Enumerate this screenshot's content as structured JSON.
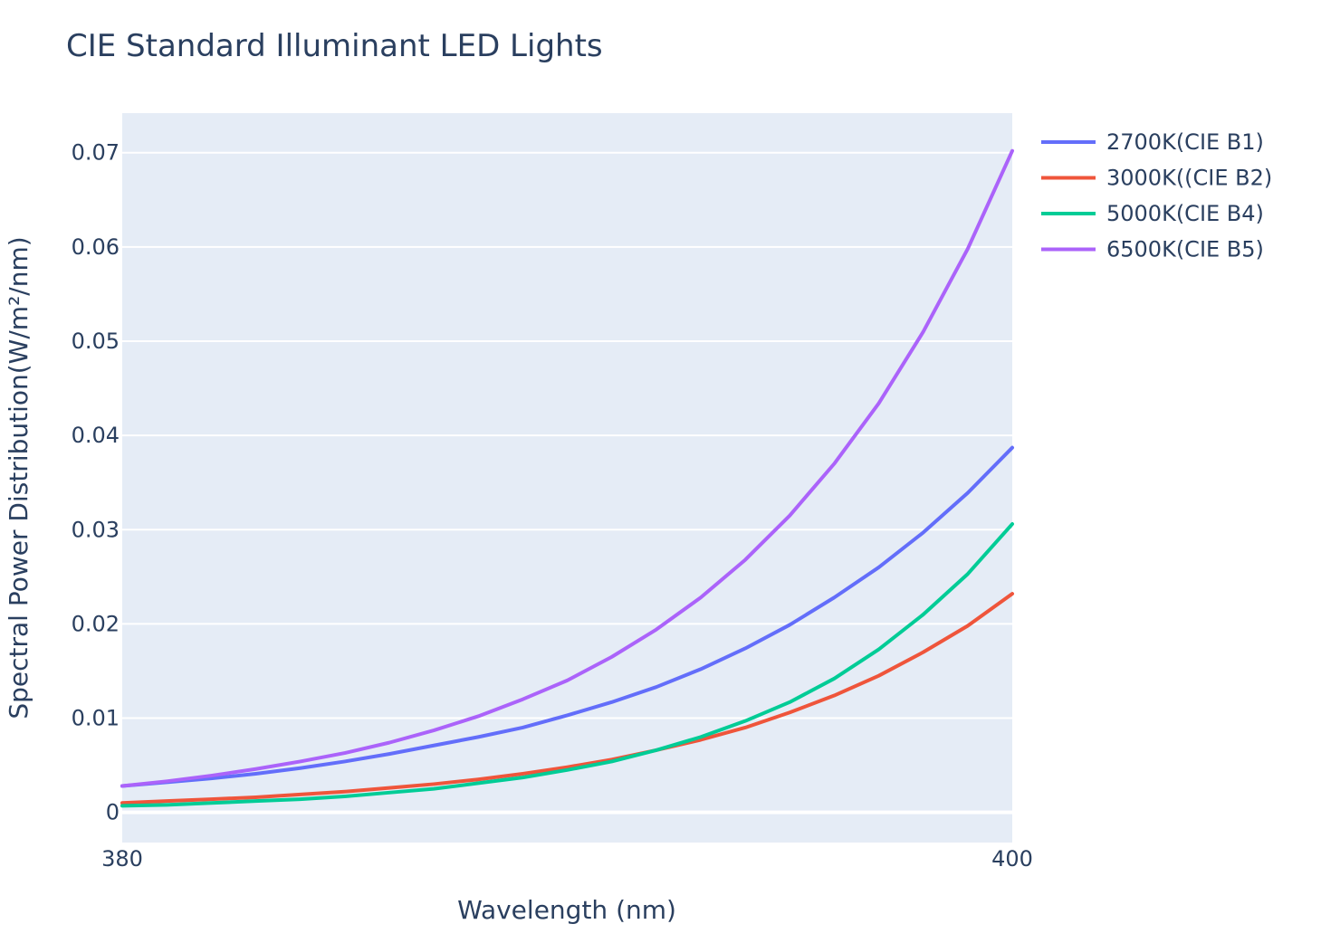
{
  "chart_data": {
    "type": "line",
    "title": "CIE Standard Illuminant LED Lights",
    "xlabel": "Wavelength (nm)",
    "ylabel": "Spectral Power Distribution(W/m²/nm)",
    "xlim": [
      380,
      400
    ],
    "ylim": [
      -0.0032,
      0.0742
    ],
    "x_ticks": [
      380,
      400
    ],
    "x_tick_labels": [
      "380",
      "400"
    ],
    "y_ticks": [
      0,
      0.01,
      0.02,
      0.03,
      0.04,
      0.05,
      0.06,
      0.07
    ],
    "y_tick_labels": [
      "0",
      "0.01",
      "0.02",
      "0.03",
      "0.04",
      "0.05",
      "0.06",
      "0.07"
    ],
    "grid": true,
    "legend_position": "top-right",
    "plot_background": "#e5ecf6",
    "x": [
      380,
      381,
      382,
      383,
      384,
      385,
      386,
      387,
      388,
      389,
      390,
      391,
      392,
      393,
      394,
      395,
      396,
      397,
      398,
      399,
      400
    ],
    "series": [
      {
        "name": "2700K(CIE B1)",
        "color": "#636efa",
        "values": [
          0.0028,
          0.0032,
          0.0036,
          0.0041,
          0.0047,
          0.0054,
          0.0062,
          0.0071,
          0.008,
          0.009,
          0.0103,
          0.0117,
          0.0133,
          0.0152,
          0.0174,
          0.0199,
          0.0228,
          0.026,
          0.0297,
          0.0339,
          0.0387
        ]
      },
      {
        "name": "3000K((CIE B2)",
        "color": "#ef553b",
        "values": [
          0.001,
          0.0012,
          0.0014,
          0.0016,
          0.0019,
          0.0022,
          0.0026,
          0.003,
          0.0035,
          0.0041,
          0.0048,
          0.0056,
          0.0066,
          0.0077,
          0.009,
          0.0106,
          0.0124,
          0.0145,
          0.017,
          0.0198,
          0.0232
        ]
      },
      {
        "name": "5000K(CIE B4)",
        "color": "#00cc96",
        "values": [
          0.0007,
          0.0008,
          0.001,
          0.0012,
          0.0014,
          0.0017,
          0.0021,
          0.0025,
          0.0031,
          0.0037,
          0.0045,
          0.0054,
          0.0066,
          0.008,
          0.0097,
          0.0117,
          0.0142,
          0.0173,
          0.021,
          0.0253,
          0.0306
        ]
      },
      {
        "name": "6500K(CIE B5)",
        "color": "#ab63fa",
        "values": [
          0.0028,
          0.0033,
          0.0039,
          0.0046,
          0.0054,
          0.0063,
          0.0074,
          0.0087,
          0.0102,
          0.012,
          0.014,
          0.0165,
          0.0194,
          0.0228,
          0.0268,
          0.0315,
          0.037,
          0.0434,
          0.051,
          0.0598,
          0.0702
        ]
      }
    ]
  }
}
